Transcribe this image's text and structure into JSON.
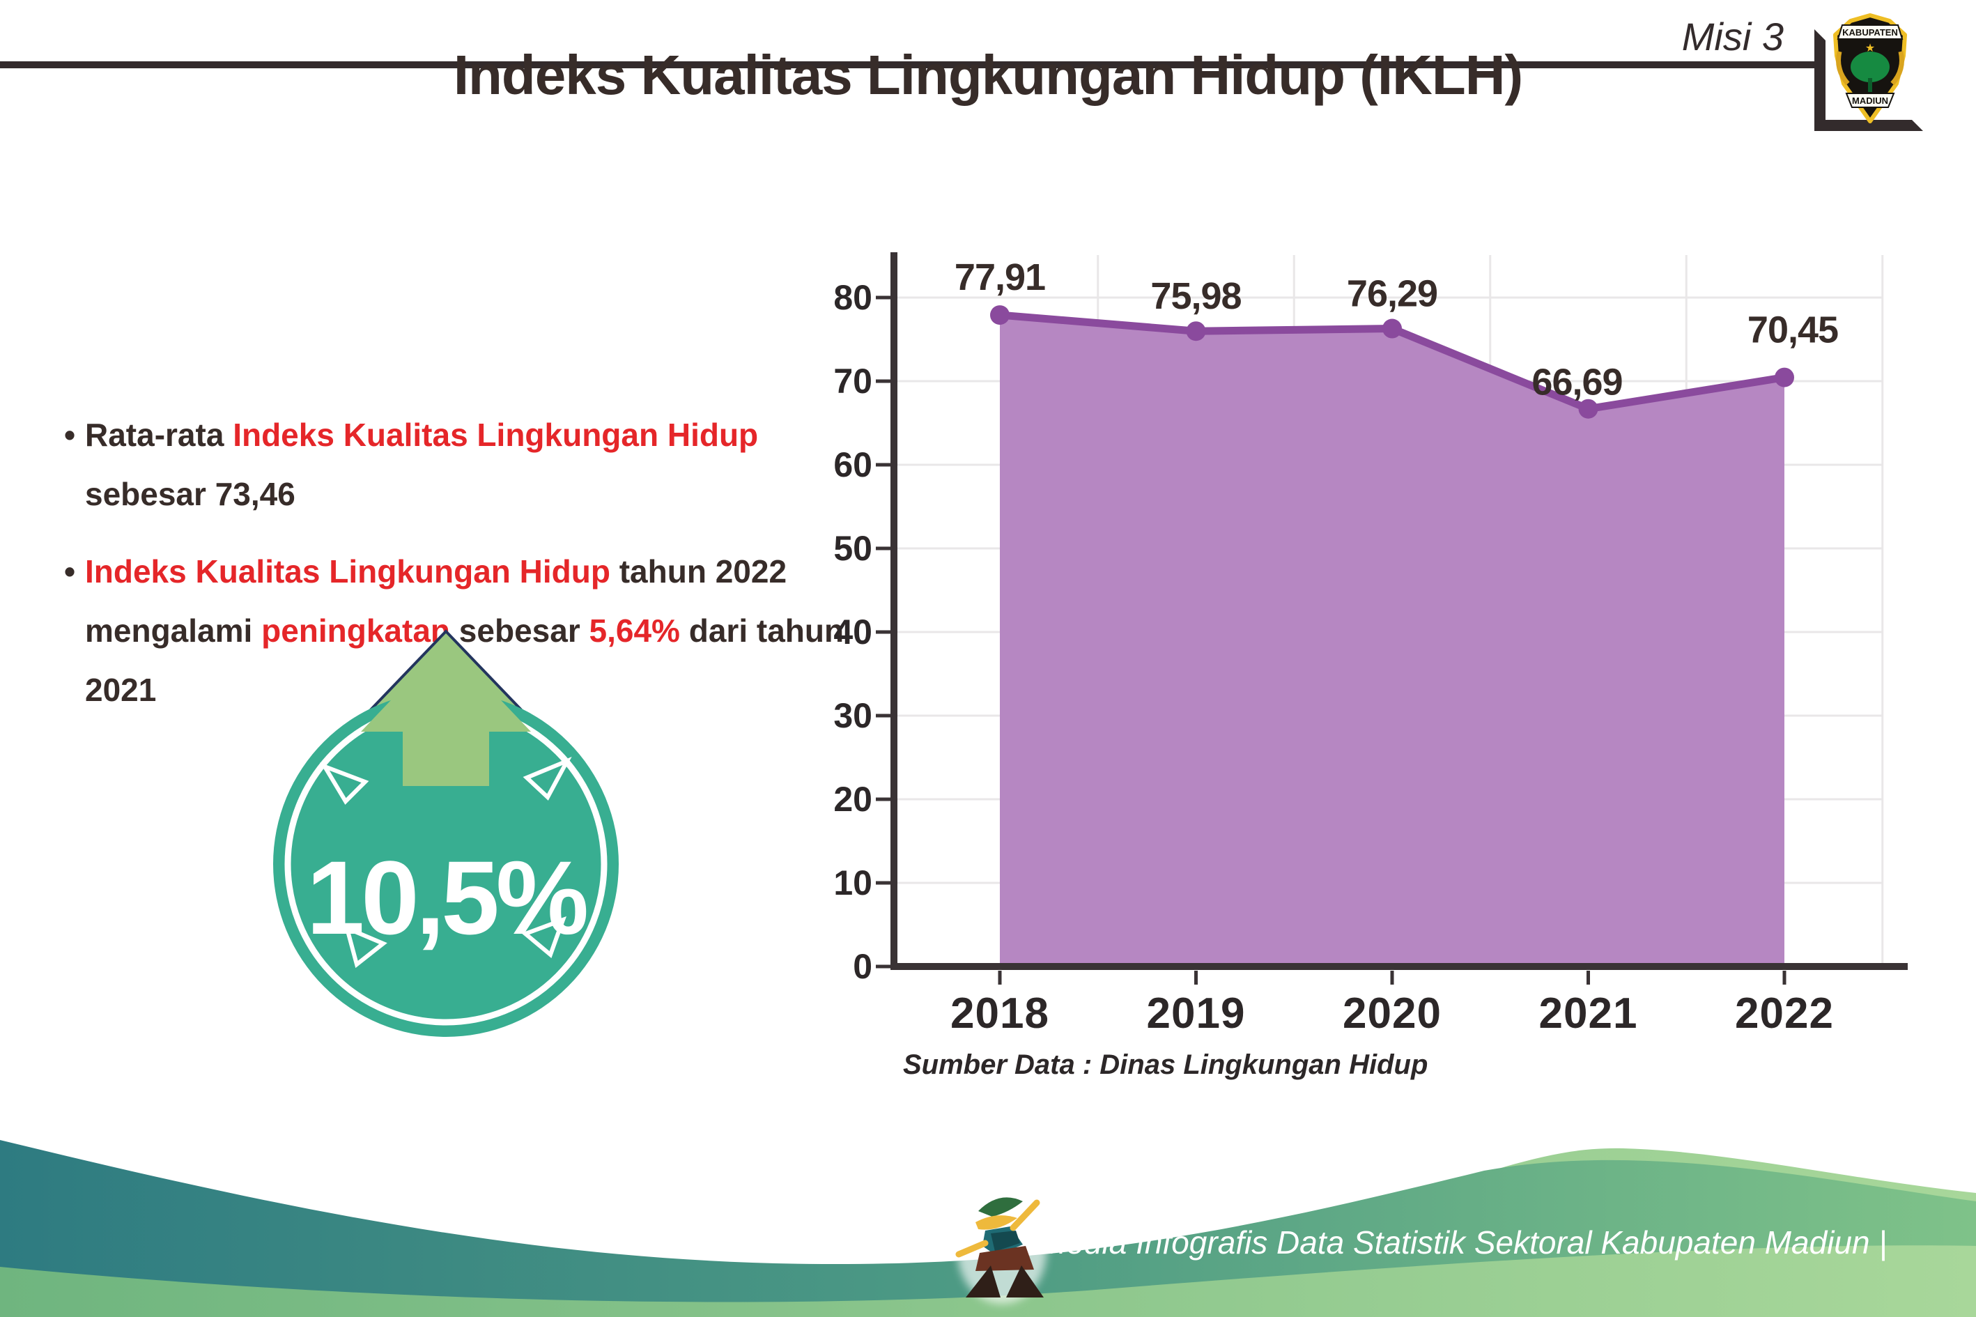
{
  "header": {
    "misi_label": "Misi 3",
    "logo": {
      "top_text": "KABUPATEN",
      "bottom_text": "MADIUN"
    }
  },
  "title": "Indeks Kualitas Lingkungan Hidup (IKLH)",
  "bullet_marker": "•",
  "bullets": [
    {
      "segments": [
        {
          "text": "Rata-rata ",
          "style": "dark"
        },
        {
          "text": "Indeks Kualitas Lingkungan Hidup",
          "style": "red"
        },
        {
          "text": " sebesar 73,46",
          "style": "dark"
        }
      ]
    },
    {
      "segments": [
        {
          "text": "Indeks Kualitas Lingkungan Hidup",
          "style": "red"
        },
        {
          "text": " tahun 2022 mengalami ",
          "style": "dark"
        },
        {
          "text": "peningkatan",
          "style": "red"
        },
        {
          "text": " sebesar ",
          "style": "dark"
        },
        {
          "text": "5,64%",
          "style": "red"
        },
        {
          "text": " dari tahun 2021",
          "style": "dark"
        }
      ]
    }
  ],
  "badge": {
    "value": "10,5%",
    "circle_color": "#38ae91",
    "arrow_color": "#9ac77f"
  },
  "chart_data": {
    "type": "area",
    "categories": [
      "2018",
      "2019",
      "2020",
      "2021",
      "2022"
    ],
    "values": [
      77.91,
      75.98,
      76.29,
      66.69,
      70.45
    ],
    "point_labels": [
      "77,91",
      "75,98",
      "76,29",
      "66,69",
      "70,45"
    ],
    "ylim": [
      0,
      80
    ],
    "ytick_step": 10,
    "grid": true,
    "legend": "none",
    "fill_color": "#b687c2",
    "line_color": "#8a4a9d",
    "source": "Sumber Data : Dinas Lingkungan Hidup"
  },
  "footer": {
    "text": "Media Infografis Data Statistik Sektoral Kabupaten Madiun |"
  },
  "colors": {
    "accent_red": "#e52629",
    "text_dark": "#372c29",
    "axis_dark": "#3a3335",
    "gridline": "#e9e7e8",
    "footer_teal": "#2e7b81",
    "footer_green": "#7fc289"
  }
}
